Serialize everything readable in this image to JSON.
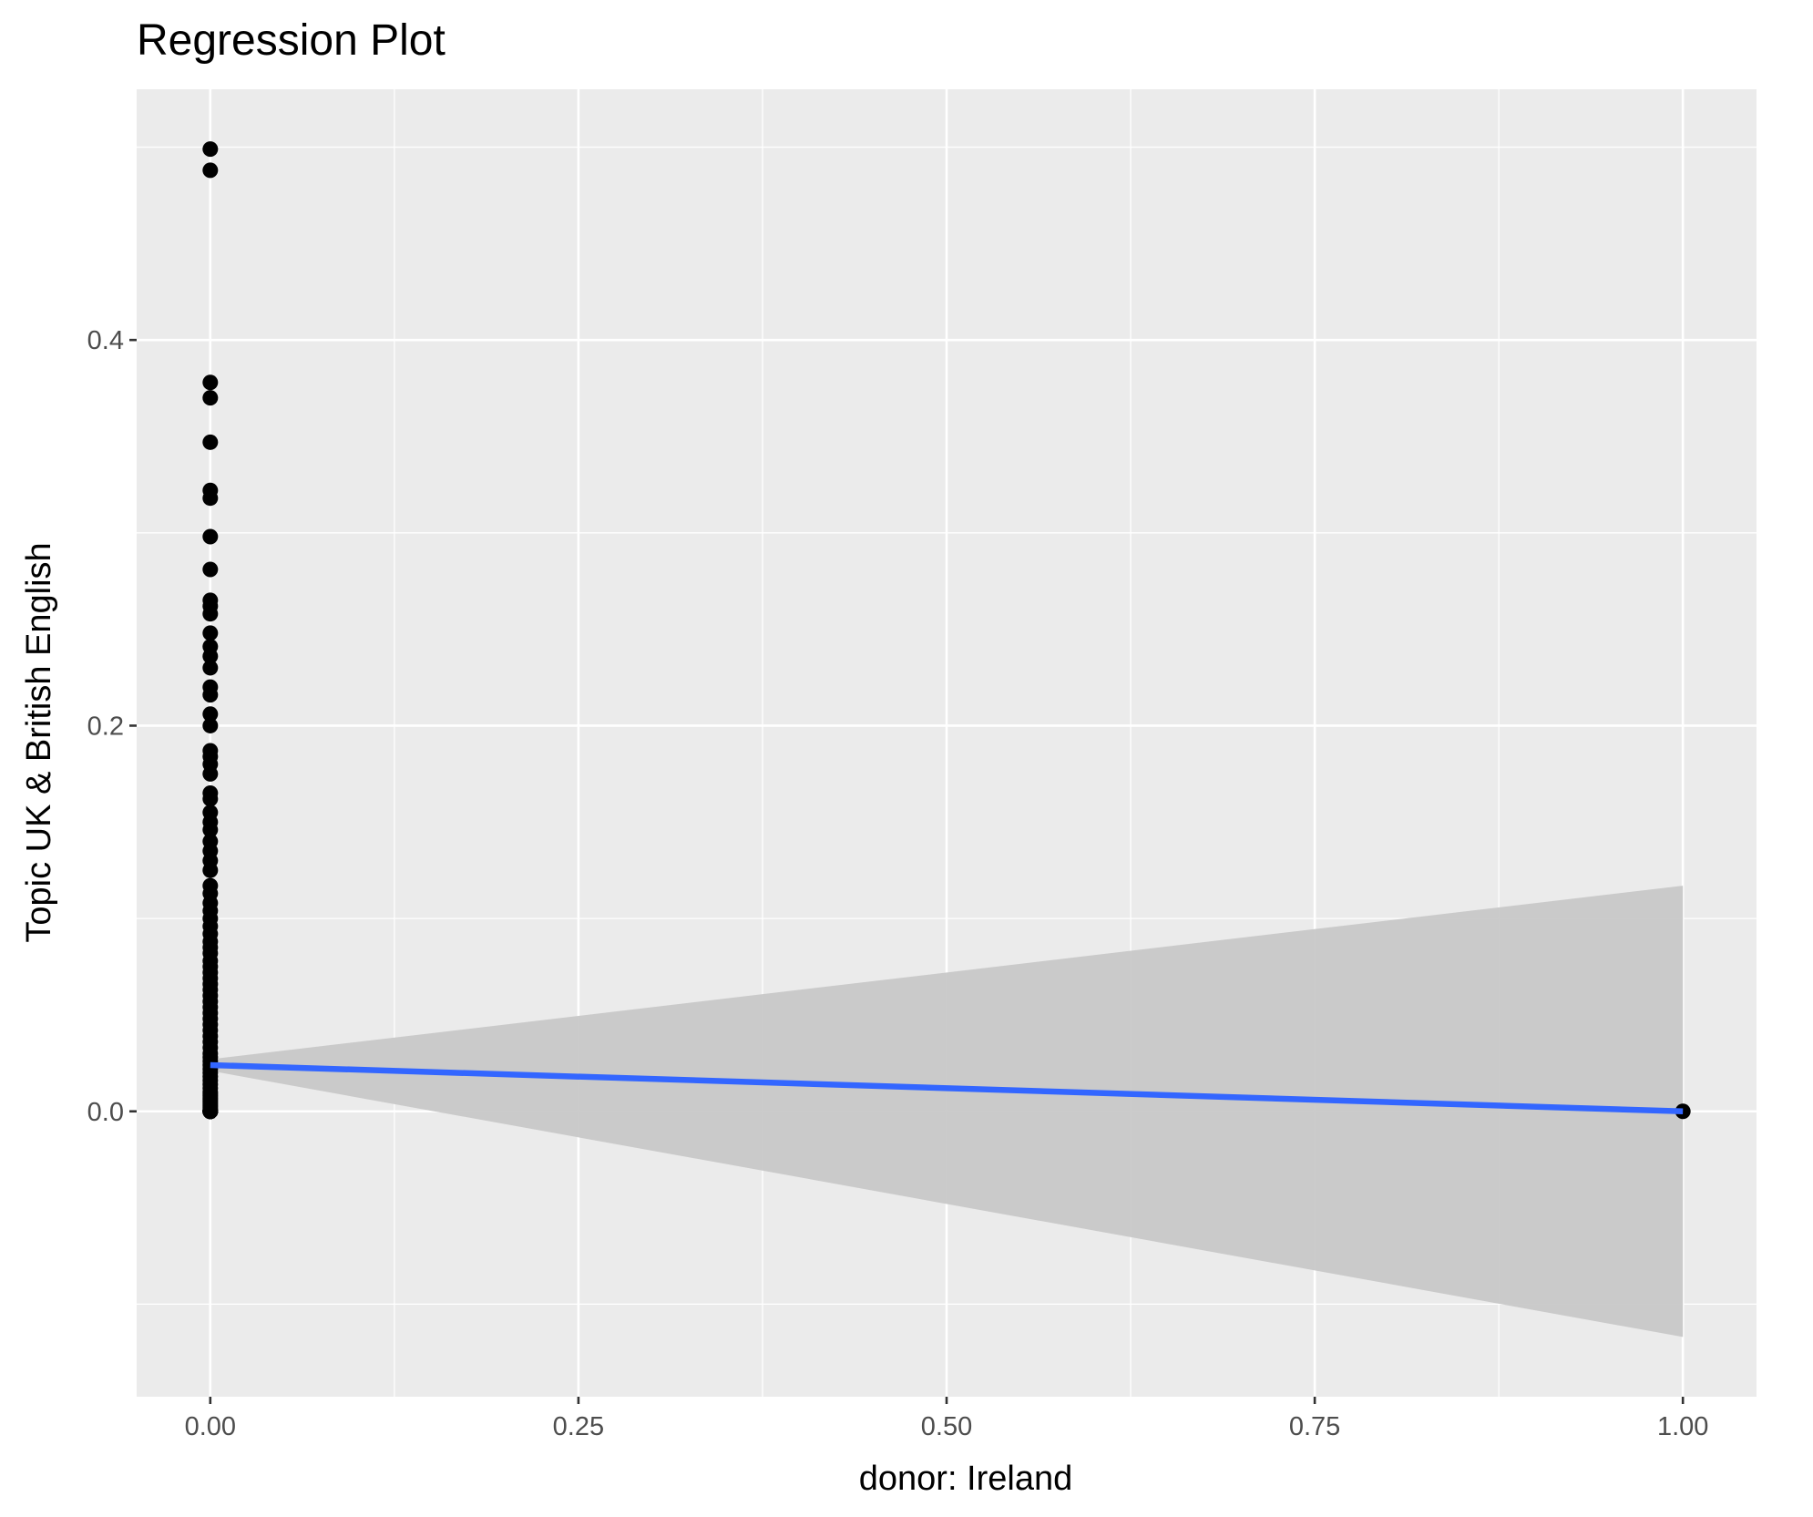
{
  "chart_data": {
    "type": "scatter",
    "title": "Regression Plot",
    "xlabel": "donor: Ireland",
    "ylabel": "Topic UK & British English",
    "xlim": [
      -0.05,
      1.05
    ],
    "ylim": [
      -0.148,
      0.53
    ],
    "x_ticks": [
      0.0,
      0.25,
      0.5,
      0.75,
      1.0
    ],
    "x_tick_labels": [
      "0.00",
      "0.25",
      "0.50",
      "0.75",
      "1.00"
    ],
    "y_ticks": [
      0.0,
      0.2,
      0.4
    ],
    "y_tick_labels": [
      "0.0",
      "0.2",
      "0.4"
    ],
    "grid": true,
    "colors": {
      "panel_background": "#ebebeb",
      "grid": "#ffffff",
      "points": "#000000",
      "fit_line": "#3366ff",
      "confidence_band": "#c8c8c8"
    },
    "points": {
      "x": [
        0,
        0,
        0,
        0,
        0,
        0,
        0,
        0,
        0,
        0,
        0,
        0,
        0,
        0,
        0,
        0,
        0,
        0,
        0,
        0,
        0,
        0,
        0,
        0,
        0,
        0,
        0,
        0,
        0,
        0,
        0,
        0,
        0,
        0,
        0,
        0,
        0,
        0,
        0,
        0,
        0,
        0,
        0,
        0,
        0,
        0,
        0,
        0,
        0,
        0,
        0,
        0,
        0,
        0,
        0,
        0,
        0,
        0,
        0,
        0,
        0,
        0,
        0,
        0,
        0,
        0,
        0,
        0,
        0,
        0,
        0,
        0,
        0,
        0,
        0,
        0,
        0,
        0,
        0,
        0,
        0,
        0,
        0,
        0,
        0,
        0,
        0,
        0,
        0,
        0,
        0,
        0,
        0,
        0,
        0,
        0,
        0,
        0,
        1
      ],
      "y": [
        0.499,
        0.488,
        0.378,
        0.37,
        0.347,
        0.322,
        0.318,
        0.298,
        0.281,
        0.265,
        0.262,
        0.258,
        0.248,
        0.241,
        0.236,
        0.23,
        0.22,
        0.216,
        0.206,
        0.2,
        0.187,
        0.184,
        0.18,
        0.175,
        0.165,
        0.162,
        0.155,
        0.15,
        0.146,
        0.14,
        0.135,
        0.13,
        0.125,
        0.117,
        0.113,
        0.108,
        0.104,
        0.1,
        0.096,
        0.092,
        0.088,
        0.085,
        0.082,
        0.078,
        0.075,
        0.072,
        0.069,
        0.066,
        0.063,
        0.06,
        0.057,
        0.054,
        0.051,
        0.048,
        0.045,
        0.042,
        0.039,
        0.036,
        0.033,
        0.03,
        0.028,
        0.026,
        0.024,
        0.022,
        0.02,
        0.018,
        0.016,
        0.014,
        0.012,
        0.01,
        0.009,
        0.008,
        0.007,
        0.006,
        0.005,
        0.004,
        0.003,
        0.002,
        0.001,
        0.0,
        0.0,
        0.0,
        0.0,
        0.0,
        0.0,
        0.0,
        0.0,
        0.0,
        0.0,
        0.0,
        0.0,
        0.0,
        0.0,
        0.0,
        0.0,
        0.0,
        0.0,
        0.0,
        0.0
      ]
    },
    "fit_line": {
      "x": [
        0,
        1
      ],
      "y": [
        0.024,
        0.0
      ]
    },
    "confidence_band": {
      "x": [
        0,
        1
      ],
      "lower": [
        0.021,
        -0.117
      ],
      "upper": [
        0.027,
        0.117
      ]
    }
  }
}
